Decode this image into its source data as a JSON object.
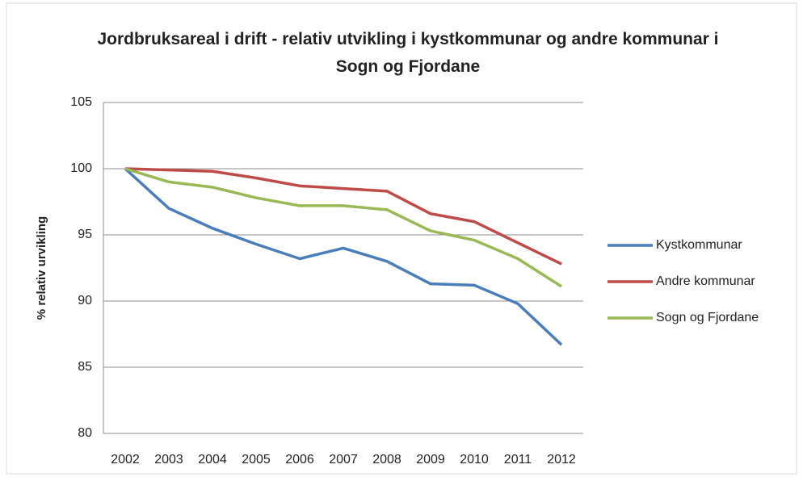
{
  "chart_data": {
    "type": "line",
    "title": "Jordbruksareal i drift - relativ utvikling i kystkommunar og andre kommunar i Sogn og Fjordane",
    "ylabel": "% relativ urvikling",
    "categories": [
      "2002",
      "2003",
      "2004",
      "2005",
      "2006",
      "2007",
      "2008",
      "2009",
      "2010",
      "2011",
      "2012"
    ],
    "series": [
      {
        "name": "Kystkommunar",
        "color": "#4a7ebb",
        "values": [
          100,
          97.0,
          95.5,
          94.3,
          93.2,
          94.0,
          93.0,
          91.3,
          91.2,
          89.8,
          86.7
        ]
      },
      {
        "name": "Andre kommunar",
        "color": "#be4b48",
        "values": [
          100,
          99.9,
          99.8,
          99.3,
          98.7,
          98.5,
          98.3,
          96.6,
          96.0,
          94.4,
          92.8
        ]
      },
      {
        "name": "Sogn og Fjordane",
        "color": "#98b954",
        "values": [
          100,
          99.0,
          98.6,
          97.8,
          97.2,
          97.2,
          96.9,
          95.3,
          94.6,
          93.2,
          91.1
        ]
      }
    ],
    "ylim": [
      80,
      105
    ],
    "yticks": [
      80,
      85,
      90,
      95,
      100,
      105
    ],
    "grid": true,
    "legend": "right"
  }
}
